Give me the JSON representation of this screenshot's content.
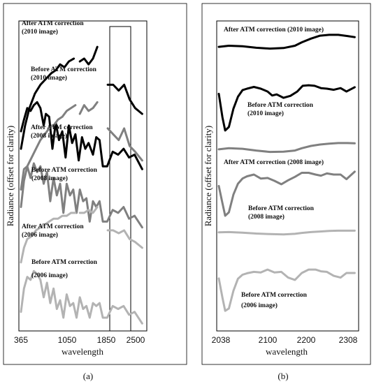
{
  "chart_data": [
    {
      "type": "line",
      "caption": "(a)",
      "xlabel": "wavelength",
      "ylabel": "Radiance (offset for clarity)",
      "xticks": [
        "365",
        "1050",
        "1850",
        "2500"
      ],
      "xlim": [
        365,
        2600
      ],
      "highlight_box": [
        2038,
        2350
      ],
      "annotations": [
        "After ATM correction",
        "(2010 image)",
        "Before ATM correction",
        "(2010 image)",
        "After ATM correction",
        "(2008 image)",
        "Before ATM correction",
        "(2008 image)",
        "After ATM correction",
        "(2006 image)",
        "Before ATM correction",
        "(2006 image)"
      ],
      "series": [
        {
          "color": "#000000",
          "x": [
            365,
            440,
            520,
            620,
            720,
            820,
            920,
            1000,
            1080,
            1160,
            1240,
            1330,
            1380,
            1440,
            1520,
            1600,
            1680,
            1760,
            1850,
            1950,
            2050,
            2150,
            2250,
            2350,
            2450,
            2580
          ],
          "values": [
            0.58,
            0.66,
            0.72,
            0.77,
            0.8,
            0.82,
            0.84,
            0.85,
            0.87,
            0.86,
            0.88,
            0.89,
            null,
            0.88,
            0.89,
            0.87,
            0.89,
            0.93,
            null,
            0.8,
            0.8,
            0.78,
            0.8,
            0.75,
            0.72,
            0.7
          ]
        },
        {
          "color": "#000000",
          "x": [
            365,
            420,
            480,
            540,
            600,
            660,
            720,
            780,
            820,
            880,
            940,
            1000,
            1060,
            1120,
            1180,
            1240,
            1300,
            1360,
            1420,
            1480,
            1540,
            1600,
            1680,
            1740,
            1800,
            1860,
            1940,
            2040,
            2140,
            2240,
            2340,
            2440,
            2580
          ],
          "values": [
            0.64,
            0.68,
            0.72,
            0.71,
            0.73,
            0.74,
            0.72,
            0.66,
            0.7,
            0.69,
            0.58,
            0.67,
            0.61,
            0.64,
            0.55,
            0.66,
            0.6,
            0.63,
            0.54,
            0.62,
            0.58,
            0.6,
            0.56,
            0.62,
            0.61,
            0.52,
            0.52,
            0.57,
            0.56,
            0.58,
            0.55,
            0.56,
            0.51
          ]
        },
        {
          "color": "#808080",
          "x": [
            365,
            420,
            480,
            560,
            640,
            720,
            800,
            880,
            960,
            1040,
            1120,
            1200,
            1280,
            1360,
            1380,
            1440,
            1520,
            1600,
            1680,
            1760,
            1850,
            1950,
            2050,
            2150,
            2250,
            2350,
            2450,
            2580
          ],
          "values": [
            0.38,
            0.47,
            0.52,
            0.55,
            0.58,
            0.61,
            0.63,
            0.65,
            0.66,
            0.68,
            0.69,
            0.71,
            0.72,
            0.73,
            null,
            0.7,
            0.73,
            0.71,
            0.72,
            0.74,
            null,
            0.65,
            0.63,
            0.61,
            0.65,
            0.59,
            0.57,
            0.54
          ]
        },
        {
          "color": "#808080",
          "x": [
            365,
            420,
            480,
            540,
            600,
            660,
            720,
            780,
            840,
            900,
            960,
            1020,
            1080,
            1140,
            1200,
            1260,
            1320,
            1380,
            1440,
            1500,
            1560,
            1620,
            1680,
            1740,
            1800,
            1860,
            1940,
            2040,
            2140,
            2240,
            2340,
            2440,
            2580
          ],
          "values": [
            0.44,
            0.51,
            0.52,
            0.48,
            0.53,
            0.5,
            0.52,
            0.46,
            0.5,
            0.4,
            0.48,
            0.42,
            0.46,
            0.36,
            0.46,
            0.42,
            0.44,
            0.36,
            0.44,
            0.4,
            0.41,
            0.33,
            0.4,
            0.38,
            0.4,
            0.33,
            0.33,
            0.37,
            0.36,
            0.38,
            0.34,
            0.35,
            0.31
          ]
        },
        {
          "color": "#b3b3b3",
          "x": [
            365,
            420,
            480,
            560,
            640,
            720,
            800,
            880,
            960,
            1040,
            1120,
            1200,
            1280,
            1360,
            1380,
            1440,
            1520,
            1600,
            1680,
            1760,
            1850,
            1950,
            2050,
            2150,
            2250,
            2350,
            2450,
            2580
          ],
          "values": [
            0.19,
            0.24,
            0.27,
            0.28,
            0.3,
            0.31,
            0.32,
            0.33,
            0.34,
            0.34,
            0.35,
            0.35,
            0.36,
            0.36,
            null,
            0.36,
            0.36,
            0.37,
            0.36,
            0.38,
            null,
            0.3,
            0.3,
            0.29,
            0.3,
            0.27,
            0.26,
            0.24
          ]
        },
        {
          "color": "#b3b3b3",
          "x": [
            365,
            420,
            480,
            540,
            600,
            660,
            720,
            780,
            840,
            900,
            960,
            1020,
            1080,
            1140,
            1200,
            1260,
            1320,
            1380,
            1440,
            1500,
            1560,
            1620,
            1680,
            1740,
            1800,
            1860,
            1940,
            2040,
            2140,
            2240,
            2340,
            2440,
            2580
          ],
          "values": [
            0.02,
            0.1,
            0.14,
            0.13,
            0.16,
            0.15,
            0.13,
            0.07,
            0.12,
            0.05,
            0.1,
            0.03,
            0.06,
            0.0,
            0.08,
            0.04,
            0.05,
            0.0,
            0.07,
            0.03,
            0.04,
            0.0,
            0.05,
            0.04,
            0.05,
            0.0,
            0.0,
            0.04,
            0.03,
            0.04,
            0.01,
            0.02,
            -0.02
          ]
        }
      ]
    },
    {
      "type": "line",
      "caption": "(b)",
      "xlabel": "wavelength",
      "ylabel": "Radiance (offset for clarity)",
      "xticks": [
        "2038",
        "2100",
        "2200",
        "2308"
      ],
      "xlim": [
        2038,
        2340
      ],
      "annotations": [
        "After ATM correction (2010 image)",
        "Before ATM correction",
        "(2010 image)",
        "After ATM correction (2008 image)",
        "Before ATM correction",
        "(2008 image)",
        "Before ATM correction",
        "(2006 image)"
      ],
      "series": [
        {
          "color": "#000000",
          "x": [
            2038,
            2060,
            2090,
            2120,
            2150,
            2180,
            2205,
            2220,
            2240,
            2260,
            2280,
            2300,
            2320,
            2336
          ],
          "values": [
            0.946,
            0.95,
            0.948,
            0.943,
            0.94,
            0.942,
            0.95,
            0.962,
            0.975,
            0.985,
            0.988,
            0.988,
            0.984,
            0.98
          ]
        },
        {
          "color": "#000000",
          "x": [
            2038,
            2046,
            2052,
            2060,
            2070,
            2080,
            2090,
            2100,
            2115,
            2130,
            2145,
            2155,
            2165,
            2180,
            2195,
            2210,
            2222,
            2235,
            2248,
            2262,
            2275,
            2290,
            2305,
            2318,
            2336
          ],
          "values": [
            0.782,
            0.7,
            0.654,
            0.666,
            0.73,
            0.772,
            0.795,
            0.8,
            0.806,
            0.8,
            0.79,
            0.776,
            0.78,
            0.768,
            0.775,
            0.79,
            0.81,
            0.812,
            0.81,
            0.802,
            0.8,
            0.796,
            0.802,
            0.79,
            0.805
          ]
        },
        {
          "color": "#808080",
          "x": [
            2038,
            2060,
            2090,
            2120,
            2150,
            2180,
            2205,
            2220,
            2240,
            2260,
            2280,
            2300,
            2320,
            2336
          ],
          "values": [
            0.588,
            0.592,
            0.59,
            0.584,
            0.579,
            0.58,
            0.584,
            0.592,
            0.6,
            0.605,
            0.608,
            0.61,
            0.61,
            0.609
          ]
        },
        {
          "color": "#808080",
          "x": [
            2038,
            2046,
            2052,
            2060,
            2070,
            2080,
            2090,
            2100,
            2115,
            2130,
            2145,
            2160,
            2175,
            2190,
            2205,
            2220,
            2235,
            2250,
            2262,
            2275,
            2290,
            2305,
            2318,
            2336
          ],
          "values": [
            0.46,
            0.4,
            0.356,
            0.368,
            0.43,
            0.468,
            0.486,
            0.494,
            0.5,
            0.486,
            0.488,
            0.478,
            0.466,
            0.48,
            0.492,
            0.506,
            0.506,
            0.5,
            0.496,
            0.504,
            0.5,
            0.5,
            0.484,
            0.51
          ]
        },
        {
          "color": "#b3b3b3",
          "x": [
            2038,
            2060,
            2090,
            2120,
            2150,
            2180,
            2205,
            2220,
            2240,
            2260,
            2280,
            2300,
            2320,
            2336
          ],
          "values": [
            0.298,
            0.299,
            0.297,
            0.294,
            0.292,
            0.291,
            0.293,
            0.296,
            0.299,
            0.301,
            0.303,
            0.304,
            0.304,
            0.304
          ]
        },
        {
          "color": "#b3b3b3",
          "x": [
            2038,
            2046,
            2052,
            2060,
            2070,
            2080,
            2090,
            2100,
            2115,
            2130,
            2145,
            2160,
            2175,
            2190,
            2205,
            2220,
            2235,
            2250,
            2262,
            2275,
            2290,
            2305,
            2318,
            2336
          ],
          "values": [
            0.137,
            0.07,
            0.024,
            0.032,
            0.094,
            0.136,
            0.15,
            0.155,
            0.16,
            0.158,
            0.168,
            0.158,
            0.16,
            0.14,
            0.132,
            0.156,
            0.168,
            0.168,
            0.162,
            0.16,
            0.146,
            0.14,
            0.156,
            0.156
          ]
        }
      ]
    }
  ]
}
